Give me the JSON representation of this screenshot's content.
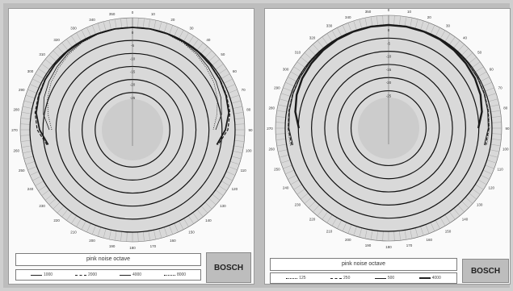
{
  "colors": {
    "ring": "#111111",
    "background_disc": "#d9d9d9",
    "center_disc": "#c8c8c8",
    "line": "#1a1a1a"
  },
  "panels": [
    {
      "caption": "pink noise octave",
      "brand": "BOSCH",
      "legend": [
        {
          "label": "1000",
          "style": "solid",
          "width": 1.8
        },
        {
          "label": "2000",
          "style": "dash",
          "width": 1.2
        },
        {
          "label": "4000",
          "style": "solid",
          "width": 0.8
        },
        {
          "label": "8000",
          "style": "dot",
          "width": 0.8
        }
      ]
    },
    {
      "caption": "pink noise octave",
      "brand": "BOSCH",
      "legend": [
        {
          "label": "125",
          "style": "dot",
          "width": 0.8
        },
        {
          "label": "250",
          "style": "dash",
          "width": 1.0
        },
        {
          "label": "500",
          "style": "solid",
          "width": 1.0
        },
        {
          "label": "4000",
          "style": "solid",
          "width": 2.4
        }
      ]
    }
  ],
  "chart_data": [
    {
      "type": "polar",
      "angle_ticks": [
        "0",
        "10",
        "20",
        "30",
        "40",
        "50",
        "60",
        "70",
        "80",
        "90",
        "100",
        "110",
        "120",
        "130",
        "140",
        "150",
        "160",
        "170",
        "180",
        "190",
        "200",
        "210",
        "220",
        "230",
        "240",
        "250",
        "260",
        "270",
        "280",
        "290",
        "300",
        "310",
        "320",
        "330",
        "340",
        "350"
      ],
      "radial_ticks": [
        "0",
        "-5",
        "-10",
        "-15",
        "-20",
        "-25"
      ],
      "rlim": [
        -30,
        0
      ],
      "series": [
        {
          "name": "1000",
          "angles": [
            -100,
            -90,
            -80,
            -70,
            -60,
            -50,
            -40,
            -30,
            -20,
            -10,
            0,
            10,
            20,
            30,
            40,
            50,
            60,
            70,
            80,
            90,
            100
          ],
          "values": [
            -14,
            -8,
            -4,
            -2.5,
            -1.5,
            -1,
            -0.5,
            -0.3,
            -0.2,
            0,
            0,
            0,
            -0.2,
            -0.3,
            -0.5,
            -1,
            -1.5,
            -2.5,
            -4,
            -8,
            -14
          ]
        },
        {
          "name": "2000",
          "angles": [
            -100,
            -90,
            -80,
            -70,
            -60,
            -50,
            -40,
            -30,
            -20,
            -10,
            0,
            10,
            20,
            30,
            40,
            50,
            60,
            70,
            80,
            90,
            100
          ],
          "values": [
            -13,
            -6,
            -3,
            -2,
            -1.2,
            -0.8,
            -0.5,
            -0.3,
            -0.2,
            0,
            0,
            0,
            -0.2,
            -0.3,
            -0.5,
            -0.8,
            -1.2,
            -2,
            -3,
            -6,
            -13
          ]
        },
        {
          "name": "4000",
          "angles": [
            -90,
            -80,
            -70,
            -60,
            -50,
            -40,
            -30,
            -20,
            -10,
            0,
            10,
            20,
            30,
            40,
            50,
            60,
            70,
            80,
            90
          ],
          "values": [
            -16,
            -10,
            -7,
            -5,
            -3.5,
            -2,
            -1,
            -0.5,
            -0.2,
            0,
            -0.2,
            -0.5,
            -1,
            -2,
            -3.5,
            -5,
            -7,
            -10,
            -16
          ]
        },
        {
          "name": "8000",
          "angles": [
            -90,
            -80,
            -70,
            -60,
            -50,
            -40,
            -30,
            -20,
            -10,
            0,
            10,
            20,
            30,
            40,
            50,
            60,
            70,
            80,
            90
          ],
          "values": [
            -18,
            -14,
            -10,
            -7,
            -5,
            -3,
            -1.5,
            -0.6,
            -0.2,
            0,
            -0.2,
            -0.6,
            -1.5,
            -3,
            -5,
            -7,
            -10,
            -14,
            -18
          ]
        }
      ]
    },
    {
      "type": "polar",
      "angle_ticks": [
        "0",
        "10",
        "20",
        "30",
        "40",
        "50",
        "60",
        "70",
        "80",
        "90",
        "100",
        "110",
        "120",
        "130",
        "140",
        "150",
        "160",
        "170",
        "180",
        "190",
        "200",
        "210",
        "220",
        "230",
        "240",
        "250",
        "260",
        "270",
        "280",
        "290",
        "300",
        "310",
        "320",
        "330",
        "340",
        "350"
      ],
      "radial_ticks": [
        "0",
        "-5",
        "-10",
        "-15",
        "-20",
        "-25"
      ],
      "rlim": [
        -30,
        0
      ],
      "series": [
        {
          "name": "125",
          "angles": [
            -100,
            -90,
            -80,
            -70,
            -60,
            -50,
            -40,
            -30,
            -20,
            -10,
            0,
            10,
            20,
            30,
            40,
            50,
            60,
            70,
            80,
            90,
            100
          ],
          "values": [
            -3,
            -2,
            -1.5,
            -1,
            -0.6,
            -0.4,
            -0.2,
            -0.1,
            0,
            0,
            0,
            0,
            0,
            -0.1,
            -0.2,
            -0.4,
            -0.6,
            -1,
            -1.5,
            -2,
            -3
          ]
        },
        {
          "name": "250",
          "angles": [
            -100,
            -90,
            -80,
            -70,
            -60,
            -50,
            -40,
            -30,
            -20,
            -10,
            0,
            10,
            20,
            30,
            40,
            50,
            60,
            70,
            80,
            90,
            100
          ],
          "values": [
            -4,
            -2.5,
            -1.8,
            -1.2,
            -0.8,
            -0.5,
            -0.3,
            -0.1,
            0,
            0,
            0,
            0,
            0,
            -0.1,
            -0.3,
            -0.5,
            -0.8,
            -1.2,
            -1.8,
            -2.5,
            -4
          ]
        },
        {
          "name": "500",
          "angles": [
            -100,
            -90,
            -80,
            -70,
            -60,
            -50,
            -40,
            -30,
            -20,
            -10,
            0,
            10,
            20,
            30,
            40,
            50,
            60,
            70,
            80,
            90,
            100
          ],
          "values": [
            -5,
            -3,
            -2.2,
            -1.5,
            -1,
            -0.6,
            -0.3,
            -0.1,
            0,
            0,
            0,
            0,
            0,
            -0.1,
            -0.3,
            -0.6,
            -1,
            -1.5,
            -2.2,
            -3,
            -5
          ]
        },
        {
          "name": "4000",
          "angles": [
            -90,
            -80,
            -70,
            -60,
            -50,
            -40,
            -30,
            -20,
            -10,
            0,
            10,
            20,
            30,
            40,
            50,
            60,
            70,
            80,
            90
          ],
          "values": [
            -11,
            -7,
            -4.5,
            -3,
            -2,
            -1.2,
            -0.6,
            -0.3,
            -0.1,
            0,
            -0.1,
            -0.3,
            -0.6,
            -1.2,
            -2,
            -3,
            -4.5,
            -7,
            -11
          ]
        }
      ]
    }
  ]
}
